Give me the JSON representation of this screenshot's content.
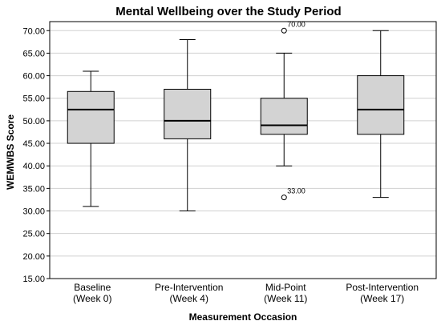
{
  "chart_data": {
    "type": "boxplot",
    "title": "Mental Wellbeing over the Study Period",
    "xlabel": "Measurement Occasion",
    "ylabel": "WEMWBS Score",
    "ylim": [
      15,
      72
    ],
    "yticks": [
      "15.00",
      "20.00",
      "25.00",
      "30.00",
      "35.00",
      "40.00",
      "45.00",
      "50.00",
      "55.00",
      "60.00",
      "65.00",
      "70.00"
    ],
    "grid": true,
    "categories": [
      {
        "line1": "Baseline",
        "line2": "(Week 0)"
      },
      {
        "line1": "Pre-Intervention",
        "line2": "(Week 4)"
      },
      {
        "line1": "Mid-Point",
        "line2": "(Week 11)"
      },
      {
        "line1": "Post-Intervention",
        "line2": "(Week 17)"
      }
    ],
    "boxes": [
      {
        "min": 31,
        "q1": 45,
        "median": 52.5,
        "q3": 56.5,
        "max": 61,
        "outliers": []
      },
      {
        "min": 30,
        "q1": 46,
        "median": 50,
        "q3": 57,
        "max": 68,
        "outliers": []
      },
      {
        "min": 40,
        "q1": 47,
        "median": 49,
        "q3": 55,
        "max": 65,
        "outliers": [
          {
            "value": 70,
            "label": "70.00"
          },
          {
            "value": 33,
            "label": "33.00"
          }
        ]
      },
      {
        "min": 33,
        "q1": 47,
        "median": 52.5,
        "q3": 60,
        "max": 70,
        "outliers": []
      }
    ]
  }
}
